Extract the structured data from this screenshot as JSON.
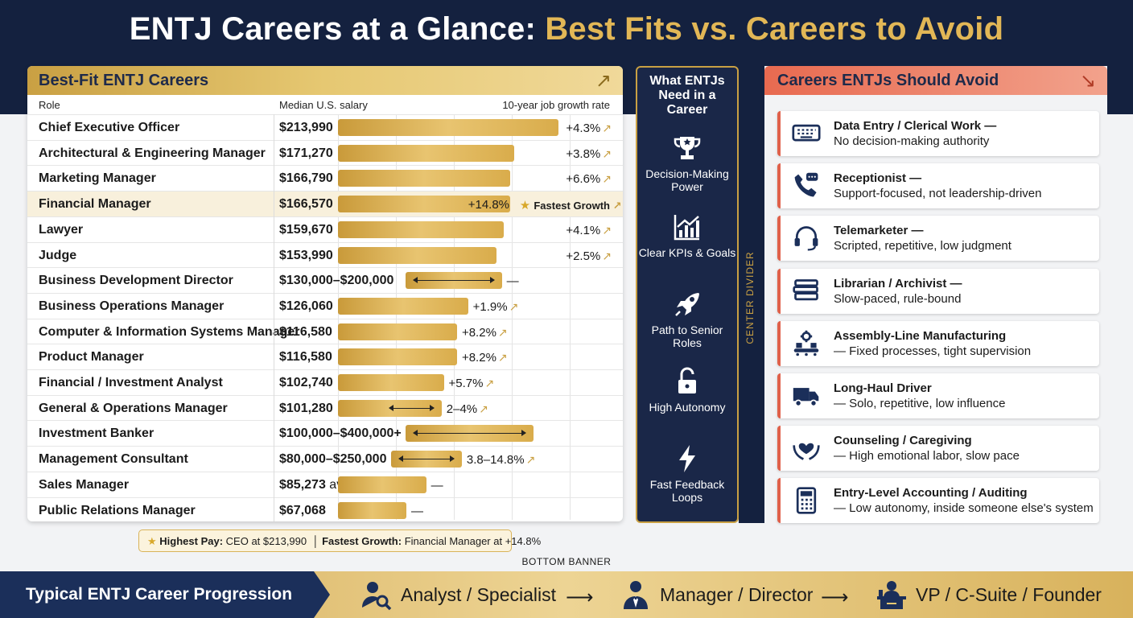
{
  "title": {
    "main": "ENTJ Careers at a Glance:",
    "accent": "Best Fits vs. Careers to Avoid"
  },
  "best_fit": {
    "title": "Best-Fit ENTJ Careers",
    "col_role": "Role",
    "col_salary": "Median U.S. salary",
    "col_growth": "10-year job growth rate",
    "fastest_label": "Fastest Growth",
    "roles": [
      {
        "role": "Chief Executive Officer",
        "salary": "$213,990",
        "salary_suffix": "",
        "growth": "+4.3%",
        "bar": 1.0
      },
      {
        "role": "Architectural & Engineering Manager",
        "salary": "$171,270",
        "salary_suffix": "",
        "growth": "+3.8%",
        "bar": 0.8
      },
      {
        "role": "Marketing Manager",
        "salary": "$166,790",
        "salary_suffix": "",
        "growth": "+6.6%",
        "bar": 0.78
      },
      {
        "role": "Financial Manager",
        "salary": "$166,570",
        "salary_suffix": "",
        "growth": "+14.8%",
        "bar": 0.78,
        "highlight": true
      },
      {
        "role": "Lawyer",
        "salary": "$159,670",
        "salary_suffix": "",
        "growth": "+4.1%",
        "bar": 0.75
      },
      {
        "role": "Judge",
        "salary": "$153,990",
        "salary_suffix": "",
        "growth": "+2.5%",
        "bar": 0.72
      },
      {
        "role": "Business Development Director",
        "salary": "$130,000–$200,000",
        "salary_suffix": "",
        "growth": "—",
        "range": [
          0.61,
          0.94
        ]
      },
      {
        "role": "Business Operations Manager",
        "salary": "$126,060",
        "salary_suffix": "",
        "growth": "+1.9%",
        "bar": 0.59
      },
      {
        "role": "Computer & Information Systems Manager",
        "salary": "$116,580",
        "salary_suffix": "",
        "growth": "+8.2%",
        "bar": 0.54
      },
      {
        "role": "Product Manager",
        "salary": "$116,580",
        "salary_suffix": "",
        "growth": "+8.2%",
        "bar": 0.54
      },
      {
        "role": "Financial / Investment Analyst",
        "salary": "$102,740",
        "salary_suffix": "",
        "growth": "+5.7%",
        "bar": 0.48
      },
      {
        "role": "General & Operations Manager",
        "salary": "$101,280",
        "salary_suffix": "",
        "growth": "2–4%",
        "bar": 0.47,
        "arrows": true
      },
      {
        "role": "Investment Banker",
        "salary": "$100,000–$400,000+",
        "salary_suffix": "",
        "growth": "",
        "range": [
          0.47,
          1.24
        ]
      },
      {
        "role": "Management Consultant",
        "salary": "$80,000–$250,000",
        "salary_suffix": "",
        "growth": "3.8–14.8%",
        "range": [
          0.37,
          1.17
        ]
      },
      {
        "role": "Sales Manager",
        "salary": "$85,273",
        "salary_suffix": " avg base",
        "growth": "—",
        "bar": 0.4
      },
      {
        "role": "Public Relations Manager",
        "salary": "$67,068",
        "salary_suffix": "",
        "growth": "—",
        "bar": 0.31
      }
    ]
  },
  "highlights": {
    "pay_label": "Highest Pay:",
    "pay_value": "CEO at $213,990",
    "growth_label": "Fastest Growth:",
    "growth_value": "Financial Manager at +14.8%"
  },
  "needs": {
    "title": "What ENTJs Need in a Career",
    "items": [
      {
        "label": "Decision-Making Power",
        "icon": "trophy-icon"
      },
      {
        "label": "Clear KPIs & Goals",
        "icon": "chart-icon"
      },
      {
        "label": "Path to Senior Roles",
        "icon": "rocket-icon"
      },
      {
        "label": "High Autonomy",
        "icon": "unlocked-icon"
      },
      {
        "label": "Fast Feedback Loops",
        "icon": "lightning-icon"
      }
    ],
    "divider_label": "CENTER DIVIDER"
  },
  "avoid": {
    "title": "Careers ENTJs Should Avoid",
    "items": [
      {
        "t1": "Data Entry / Clerical Work —",
        "t2": "No decision-making authority",
        "icon": "keyboard-icon"
      },
      {
        "t1": "Receptionist —",
        "t2": "Support-focused, not leadership-driven",
        "icon": "phone-icon"
      },
      {
        "t1": "Telemarketer —",
        "t2": "Scripted, repetitive, low judgment",
        "icon": "headset-icon"
      },
      {
        "t1": "Librarian / Archivist —",
        "t2": "Slow-paced, rule-bound",
        "icon": "books-icon"
      },
      {
        "t1": "Assembly-Line Manufacturing",
        "t2": "— Fixed processes, tight supervision",
        "icon": "conveyor-icon"
      },
      {
        "t1": "Long-Haul Driver",
        "t2": "— Solo, repetitive, low influence",
        "icon": "truck-icon"
      },
      {
        "t1": "Counseling / Caregiving",
        "t2": "— High emotional labor, slow pace",
        "icon": "caring-hands-icon"
      },
      {
        "t1": "Entry-Level Accounting / Auditing",
        "t2": "— Low autonomy, inside someone else's system",
        "icon": "calculator-icon"
      }
    ]
  },
  "bottom": {
    "label": "BOTTOM BANNER",
    "title": "Typical ENTJ Career Progression",
    "stages": [
      {
        "label": "Analyst / Specialist",
        "icon": "analyst-icon"
      },
      {
        "label": "Manager / Director",
        "icon": "manager-icon"
      },
      {
        "label": "VP / C-Suite / Founder",
        "icon": "executive-desk-icon"
      }
    ]
  },
  "colors": {
    "navy": "#14213f",
    "gold": "#c9a043",
    "coral": "#e0604a"
  }
}
